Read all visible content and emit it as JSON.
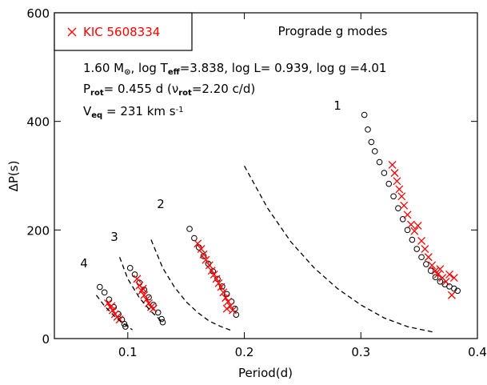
{
  "chart_data": {
    "type": "scatter",
    "xlabel": "Period(d)",
    "ylabel": "ΔP(s)",
    "xlim": [
      0.037,
      0.4
    ],
    "ylim": [
      0,
      600
    ],
    "xticks": [
      0.1,
      0.2,
      0.3,
      0.4
    ],
    "yticks": [
      0,
      200,
      400,
      600
    ],
    "legend": "top-left",
    "annotations": [
      {
        "parts": [
          {
            "text": "Prograde g modes"
          }
        ]
      },
      {
        "parts": [
          {
            "text": "1.60 M"
          },
          {
            "text": "⊙",
            "style": "sub"
          },
          {
            "text": ", log T"
          },
          {
            "text": "eff",
            "style": "sub"
          },
          {
            "text": "=3.838, log L= 0.939, log g =4.01"
          }
        ]
      },
      {
        "parts": [
          {
            "text": "P"
          },
          {
            "text": "rot",
            "style": "sub"
          },
          {
            "text": "= 0.455 d (ν"
          },
          {
            "text": "rot",
            "style": "sub"
          },
          {
            "text": "=2.20 c/d)"
          }
        ]
      },
      {
        "parts": [
          {
            "text": "V"
          },
          {
            "text": "eq",
            "style": "sub"
          },
          {
            "text": " = 231 km s"
          },
          {
            "text": "-1",
            "style": "sup"
          }
        ]
      }
    ],
    "branch_labels": [
      "1",
      "2",
      "3",
      "4"
    ],
    "series": [
      {
        "type": "scatter",
        "marker": "circle",
        "color": "#000000",
        "x": [
          0.303,
          0.306,
          0.309,
          0.312,
          0.316,
          0.32,
          0.324,
          0.328,
          0.332,
          0.336,
          0.34,
          0.344,
          0.348,
          0.352,
          0.356,
          0.36,
          0.364,
          0.368,
          0.372,
          0.376,
          0.38,
          0.383,
          0.153,
          0.157,
          0.161,
          0.165,
          0.169,
          0.173,
          0.177,
          0.181,
          0.185,
          0.189,
          0.192,
          0.193,
          0.102,
          0.106,
          0.11,
          0.114,
          0.118,
          0.122,
          0.126,
          0.129,
          0.13,
          0.076,
          0.08,
          0.084,
          0.088,
          0.092,
          0.095,
          0.097,
          0.098
        ],
        "values": [
          412,
          385,
          362,
          345,
          325,
          305,
          285,
          262,
          240,
          220,
          200,
          182,
          165,
          150,
          137,
          125,
          113,
          105,
          100,
          96,
          92,
          88,
          202,
          185,
          168,
          152,
          138,
          124,
          110,
          96,
          82,
          68,
          55,
          44,
          130,
          118,
          103,
          90,
          76,
          62,
          48,
          36,
          30,
          95,
          85,
          72,
          58,
          45,
          35,
          27,
          22
        ]
      },
      {
        "type": "scatter",
        "marker": "cross",
        "color": "#ff0000",
        "name": "KIC 5608334",
        "x": [
          0.327,
          0.329,
          0.331,
          0.333,
          0.335,
          0.337,
          0.34,
          0.343,
          0.346,
          0.349,
          0.352,
          0.355,
          0.358,
          0.361,
          0.364,
          0.366,
          0.368,
          0.37,
          0.373,
          0.376,
          0.378,
          0.38,
          0.16,
          0.163,
          0.165,
          0.167,
          0.17,
          0.172,
          0.174,
          0.176,
          0.178,
          0.18,
          0.182,
          0.184,
          0.186,
          0.188,
          0.19,
          0.185,
          0.108,
          0.11,
          0.112,
          0.114,
          0.116,
          0.118,
          0.12,
          0.113,
          0.122,
          0.083,
          0.085,
          0.087,
          0.089,
          0.091,
          0.093,
          0.086
        ],
        "values": [
          320,
          305,
          290,
          275,
          262,
          245,
          228,
          210,
          198,
          208,
          180,
          165,
          150,
          135,
          125,
          118,
          128,
          112,
          105,
          118,
          80,
          112,
          175,
          165,
          155,
          145,
          135,
          125,
          118,
          110,
          102,
          95,
          85,
          75,
          68,
          60,
          52,
          55,
          110,
          98,
          88,
          80,
          72,
          65,
          58,
          92,
          55,
          65,
          58,
          52,
          45,
          40,
          35,
          60
        ]
      },
      {
        "type": "line",
        "dash": true,
        "color": "#000000",
        "x": [
          0.2,
          0.22,
          0.24,
          0.26,
          0.28,
          0.3,
          0.32,
          0.34,
          0.362
        ],
        "values": [
          318,
          240,
          178,
          130,
          92,
          62,
          38,
          22,
          12
        ]
      },
      {
        "type": "line",
        "dash": true,
        "color": "#000000",
        "x": [
          0.12,
          0.13,
          0.14,
          0.15,
          0.16,
          0.17,
          0.18,
          0.19
        ],
        "values": [
          182,
          130,
          95,
          68,
          48,
          32,
          22,
          14
        ]
      },
      {
        "type": "line",
        "dash": true,
        "color": "#000000",
        "x": [
          0.093,
          0.1,
          0.11,
          0.12,
          0.13
        ],
        "values": [
          150,
          110,
          75,
          50,
          30
        ]
      },
      {
        "type": "line",
        "dash": true,
        "color": "#000000",
        "x": [
          0.073,
          0.08,
          0.09,
          0.1,
          0.104
        ],
        "values": [
          80,
          60,
          38,
          22,
          16
        ]
      }
    ]
  }
}
